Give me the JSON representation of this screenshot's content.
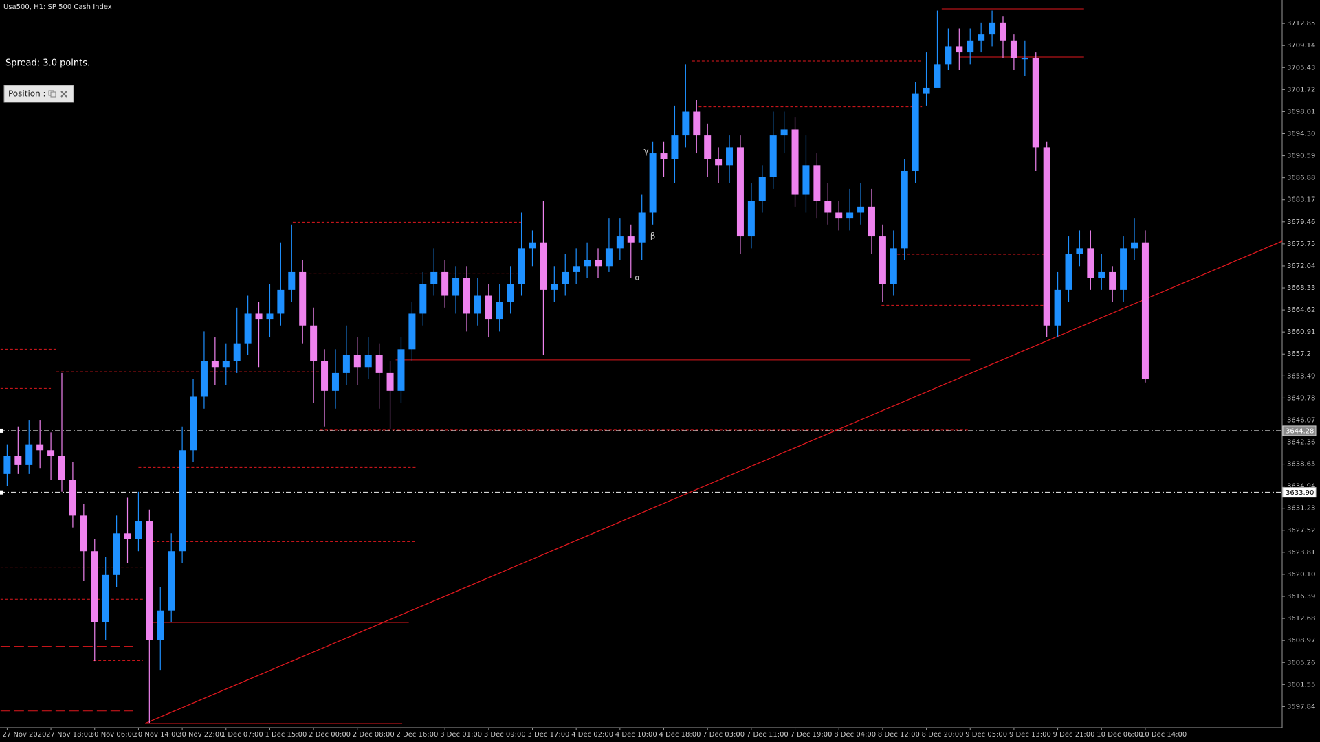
{
  "chart_data": {
    "type": "candlestick",
    "title": "Usa500, H1:  SP 500 Cash Index",
    "spread_text": "Spread: 3.0 points.",
    "panel_label": "Position :",
    "up_color": "#1e90ff",
    "down_color": "#ee82ee",
    "level_color": "#e0181e",
    "ylim": [
      3594.3,
      3716.8
    ],
    "yticks": [
      3712.85,
      3709.14,
      3705.43,
      3701.72,
      3698.01,
      {
        "value": 3694.3,
        "label": "3694.30"
      },
      3690.59,
      3686.88,
      3683.17,
      3679.46,
      3675.75,
      3672.04,
      3668.33,
      3664.62,
      3660.91,
      3657.2,
      3653.49,
      3649.78,
      3646.07,
      3642.36,
      3638.65,
      3634.94,
      3631.23,
      3627.52,
      3623.81,
      {
        "value": 3620.1,
        "label": "3620.10"
      },
      3616.39,
      3612.68,
      3608.97,
      3605.26,
      3601.55,
      3597.84
    ],
    "categories": [
      "27 Nov 2020",
      null,
      null,
      null,
      "27 Nov 18:00",
      null,
      null,
      null,
      "30 Nov 06:00",
      null,
      null,
      null,
      "30 Nov 14:00",
      null,
      null,
      null,
      "30 Nov 22:00",
      null,
      null,
      null,
      "1 Dec 07:00",
      null,
      null,
      null,
      "1 Dec 15:00",
      null,
      null,
      null,
      "2 Dec 00:00",
      null,
      null,
      null,
      "2 Dec 08:00",
      null,
      null,
      null,
      "2 Dec 16:00",
      null,
      null,
      null,
      "3 Dec 01:00",
      null,
      null,
      null,
      "3 Dec 09:00",
      null,
      null,
      null,
      "3 Dec 17:00",
      null,
      null,
      null,
      "4 Dec 02:00",
      null,
      null,
      null,
      "4 Dec 10:00",
      null,
      null,
      null,
      "4 Dec 18:00",
      null,
      null,
      null,
      "7 Dec 03:00",
      null,
      null,
      null,
      "7 Dec 11:00",
      null,
      null,
      null,
      "7 Dec 19:00",
      null,
      null,
      null,
      "8 Dec 04:00",
      null,
      null,
      null,
      "8 Dec 12:00",
      null,
      null,
      null,
      "8 Dec 20:00",
      null,
      null,
      null,
      "9 Dec 05:00",
      null,
      null,
      null,
      "9 Dec 13:00",
      null,
      null,
      null,
      "9 Dec 21:00",
      null,
      null,
      null,
      "10 Dec 06:00",
      null,
      null,
      null,
      "10 Dec 14:00"
    ],
    "open": [
      3637,
      3640,
      3638.5,
      3642,
      3641,
      3640,
      3636,
      3630,
      3624,
      3612,
      3620,
      3627,
      3626,
      3629,
      3609,
      3614,
      3624,
      3641,
      3650,
      3656,
      3655,
      3656,
      3659,
      3664,
      3663,
      3664,
      3668,
      3671,
      3662,
      3656,
      3651,
      3654,
      3657,
      3655,
      3657,
      3654,
      3651,
      3658,
      3664,
      3669,
      3671,
      3667,
      3670,
      3664,
      3667,
      3663,
      3666,
      3669,
      3675,
      3676,
      3668,
      3669,
      3671,
      3672,
      3673,
      3672,
      3675,
      3677,
      3676,
      3681,
      3691,
      3690,
      3694,
      3698,
      3694,
      3690,
      3689,
      3692,
      3677,
      3683,
      3687,
      3694,
      3695,
      3684,
      3689,
      3683,
      3681,
      3680,
      3681,
      3682,
      3677,
      3669,
      3675,
      3688,
      3701,
      3702,
      3706,
      3709,
      3708,
      3710,
      3711,
      3713,
      3710,
      3707,
      3707,
      3692,
      3662,
      3668,
      3674,
      3675,
      3670,
      3671,
      3668,
      3675,
      3676
    ],
    "high": [
      3642,
      3645,
      3646,
      3646,
      3644,
      3654,
      3639,
      3632,
      3626,
      3623,
      3630,
      3633,
      3634,
      3631,
      3618,
      3627,
      3645,
      3653,
      3661,
      3660,
      3659,
      3665,
      3667,
      3666,
      3669,
      3676,
      3679,
      3673,
      3665,
      3658,
      3658,
      3662,
      3660,
      3660,
      3659,
      3656,
      3660,
      3666,
      3671,
      3675,
      3673,
      3672,
      3672,
      3670,
      3669,
      3669,
      3672,
      3681,
      3678,
      3683,
      3672,
      3674,
      3675,
      3676,
      3675,
      3680,
      3680,
      3679,
      3684,
      3693,
      3693,
      3699,
      3706,
      3700,
      3696,
      3692,
      3694,
      3694,
      3686,
      3689,
      3698,
      3698,
      3697,
      3694,
      3691,
      3686,
      3683,
      3685,
      3686,
      3685,
      3679,
      3678,
      3690,
      3703,
      3708,
      3715,
      3712,
      3712,
      3712,
      3713,
      3715,
      3714,
      3711,
      3710,
      3708,
      3693,
      3671,
      3677,
      3678,
      3678,
      3674,
      3672,
      3677,
      3680,
      3678
    ],
    "low": [
      3635,
      3637,
      3637,
      3638,
      3636,
      3634,
      3628,
      3619,
      3605.5,
      3609,
      3618,
      3622,
      3624,
      3595,
      3604,
      3612,
      3622,
      3639,
      3648,
      3652,
      3652,
      3654,
      3657,
      3655,
      3660,
      3662,
      3666,
      3659,
      3649,
      3645,
      3648,
      3652,
      3652,
      3653,
      3648,
      3644.5,
      3649,
      3656,
      3662,
      3667,
      3665,
      3664,
      3661,
      3662,
      3660,
      3661,
      3664,
      3667,
      3672,
      3657,
      3666,
      3667,
      3669,
      3670,
      3670,
      3671,
      3673,
      3670,
      3673,
      3679,
      3687,
      3686,
      3692,
      3691,
      3687,
      3686,
      3686,
      3674,
      3675,
      3681,
      3685,
      3691,
      3682,
      3681,
      3680,
      3679,
      3678,
      3678,
      3679,
      3674,
      3666,
      3667,
      3673,
      3686,
      3699,
      3703,
      3705,
      3705,
      3706,
      3708,
      3709,
      3707,
      3705,
      3704,
      3688,
      3660,
      3660,
      3666,
      3672,
      3668,
      3668,
      3666,
      3666,
      3673,
      3652.4
    ],
    "close": [
      3640,
      3638.5,
      3642,
      3641,
      3640,
      3636,
      3630,
      3624,
      3612,
      3620,
      3627,
      3626,
      3629,
      3609,
      3614,
      3624,
      3641,
      3650,
      3656,
      3655,
      3656,
      3659,
      3664,
      3663,
      3664,
      3668,
      3671,
      3662,
      3656,
      3651,
      3654,
      3657,
      3655,
      3657,
      3654,
      3651,
      3658,
      3664,
      3669,
      3671,
      3667,
      3670,
      3664,
      3667,
      3663,
      3666,
      3669,
      3675,
      3676,
      3668,
      3669,
      3671,
      3672,
      3673,
      3672,
      3675,
      3677,
      3676,
      3681,
      3691,
      3690,
      3694,
      3698,
      3694,
      3690,
      3689,
      3692,
      3677,
      3683,
      3687,
      3694,
      3695,
      3684,
      3689,
      3683,
      3681,
      3680,
      3681,
      3682,
      3677,
      3669,
      3675,
      3688,
      3701,
      3702,
      3706,
      3709,
      3708,
      3710,
      3711,
      3713,
      3710,
      3707,
      3707,
      3692,
      3662,
      3668,
      3674,
      3675,
      3670,
      3671,
      3668,
      3675,
      3676,
      3653
    ],
    "levels": [
      {
        "price": 3715.3,
        "from": 85.4,
        "to": 98.4,
        "style": "solid"
      },
      {
        "price": 3707.2,
        "from": 87.0,
        "to": 98.4,
        "style": "solid"
      },
      {
        "price": 3706.5,
        "from": 62.6,
        "to": 83.6,
        "style": "dashed"
      },
      {
        "price": 3698.8,
        "from": 63.2,
        "to": 83.6,
        "style": "dashed"
      },
      {
        "price": 3679.4,
        "from": 26.1,
        "to": 47.0,
        "style": "dashed"
      },
      {
        "price": 3670.8,
        "from": 26.7,
        "to": 47.0,
        "style": "dashed"
      },
      {
        "price": 3674.0,
        "from": 80.9,
        "to": 95.1,
        "style": "dashed"
      },
      {
        "price": 3665.4,
        "from": 79.9,
        "to": 95.1,
        "style": "dashed"
      },
      {
        "price": 3656.2,
        "from": 35.5,
        "to": 88.0,
        "style": "solid"
      },
      {
        "price": 3658.0,
        "from": -0.6,
        "to": 4.5,
        "style": "dashed"
      },
      {
        "price": 3651.4,
        "from": -0.6,
        "to": 4.0,
        "style": "dashed"
      },
      {
        "price": 3654.2,
        "from": 4.5,
        "to": 28.6,
        "style": "dashed"
      },
      {
        "price": 3644.4,
        "from": 28.6,
        "to": 87.8,
        "style": "dashed"
      },
      {
        "price": 3638.1,
        "from": 12.0,
        "to": 37.4,
        "style": "dashed"
      },
      {
        "price": 3625.6,
        "from": 12.8,
        "to": 37.4,
        "style": "dashed"
      },
      {
        "price": 3612.0,
        "from": 13.2,
        "to": 36.7,
        "style": "solid"
      },
      {
        "price": 3595.0,
        "from": 12.6,
        "to": 36.1,
        "style": "solid"
      },
      {
        "price": 3621.3,
        "from": -0.6,
        "to": 12.4,
        "style": "dashed"
      },
      {
        "price": 3615.9,
        "from": -0.6,
        "to": 12.4,
        "style": "dashed"
      },
      {
        "price": 3608.0,
        "from": -0.6,
        "to": 11.5,
        "style": "longdash"
      },
      {
        "price": 3605.6,
        "from": 7.9,
        "to": 12.4,
        "style": "dashed"
      },
      {
        "price": 3597.1,
        "from": -0.6,
        "to": 11.5,
        "style": "longdash"
      }
    ],
    "trendline": {
      "start": [
        12.6,
        3595.0
      ],
      "end": [
        116.5,
        3676.2
      ]
    },
    "price_lines": [
      {
        "value": 3644.28,
        "label": "3644.28",
        "style": "grey"
      },
      {
        "value": 3633.9,
        "label": "3633.90",
        "style": "white"
      }
    ],
    "annotations": [
      {
        "text": "γ",
        "index": 58.4,
        "price": 3691.3
      },
      {
        "text": "β",
        "index": 59.0,
        "price": 3677.0
      },
      {
        "text": "α",
        "index": 57.6,
        "price": 3670.0
      }
    ]
  }
}
